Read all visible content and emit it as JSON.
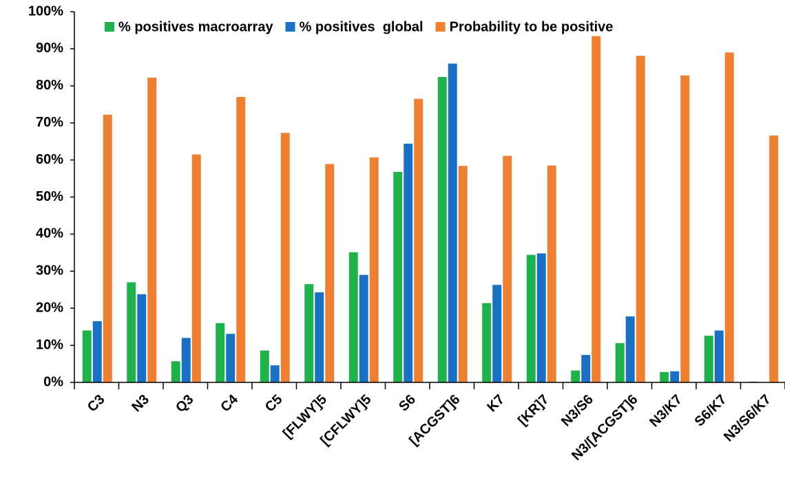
{
  "chart_data": {
    "type": "bar",
    "categories": [
      "C3",
      "N3",
      "Q3",
      "C4",
      "C5",
      "[FLWY]5",
      "[CFLWY]5",
      "S6",
      "[ACGST]6",
      "K7",
      "[KR]7",
      "N3/S6",
      "N3/[ACGST]6",
      "N3/K7",
      "S6/K7",
      "N3/S6/K7"
    ],
    "series": [
      {
        "name": "% positives macroarray",
        "color": "#1fb14b",
        "values": [
          14,
          27,
          5.7,
          16,
          8.6,
          26.5,
          35.1,
          56.8,
          82.4,
          21.4,
          34.4,
          3.2,
          10.6,
          2.8,
          12.6,
          0.2
        ]
      },
      {
        "name": "% positives  global",
        "color": "#1a70c2",
        "values": [
          16.5,
          23.8,
          12,
          13.1,
          4.6,
          24.3,
          29,
          64.4,
          86,
          26.3,
          34.8,
          7.4,
          17.8,
          3,
          14,
          0
        ]
      },
      {
        "name": "Probability to be positive",
        "color": "#ee8033",
        "values": [
          72.2,
          82.2,
          61.5,
          77,
          67.3,
          58.9,
          60.7,
          76.5,
          58.4,
          61.1,
          58.5,
          93.4,
          88.1,
          82.8,
          89,
          66.6
        ]
      }
    ],
    "ylim": [
      0,
      100
    ],
    "yticks": [
      {
        "value": 0,
        "label": "0%"
      },
      {
        "value": 10,
        "label": "10%"
      },
      {
        "value": 20,
        "label": "20%"
      },
      {
        "value": 30,
        "label": "30%"
      },
      {
        "value": 40,
        "label": "40%"
      },
      {
        "value": 50,
        "label": "50%"
      },
      {
        "value": 60,
        "label": "60%"
      },
      {
        "value": 70,
        "label": "70%"
      },
      {
        "value": 80,
        "label": "80%"
      },
      {
        "value": 90,
        "label": "90%"
      },
      {
        "value": 100,
        "label": "100%"
      }
    ],
    "grid": false,
    "legend": "top"
  }
}
